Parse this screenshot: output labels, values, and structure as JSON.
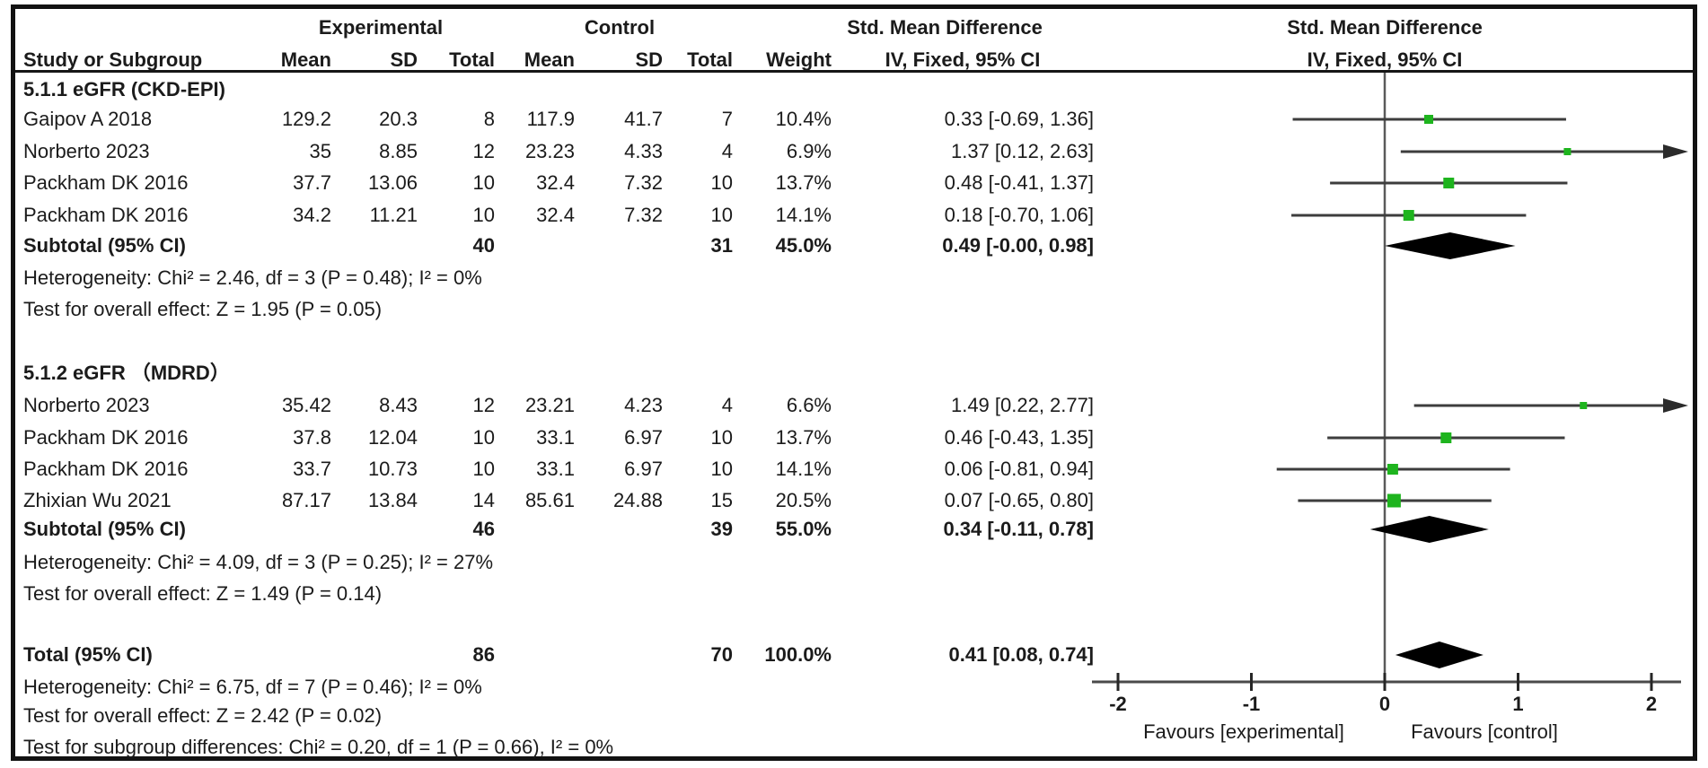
{
  "table": {
    "group_headers": {
      "experimental": "Experimental",
      "control": "Control",
      "smd_left": "Std. Mean Difference",
      "smd_right": "Std. Mean Difference"
    },
    "col_headers": {
      "study": "Study or Subgroup",
      "mean_e": "Mean",
      "sd_e": "SD",
      "total_e": "Total",
      "mean_c": "Mean",
      "sd_c": "SD",
      "total_c": "Total",
      "weight": "Weight",
      "iv_left": "IV, Fixed, 95% CI",
      "iv_right": "IV, Fixed, 95% CI"
    }
  },
  "chart_data": {
    "type": "forest",
    "effect_measure": "Std. Mean Difference",
    "method": "IV, Fixed",
    "ci_level": "95% CI",
    "marker_color": "#1eb41e",
    "diamond_color": "#000000",
    "x_axis": {
      "ticks": [
        -2,
        -1,
        0,
        1,
        2
      ],
      "range": [
        -2.2,
        2.2
      ],
      "favours_left": "Favours [experimental]",
      "favours_right": "Favours [control]"
    },
    "subgroups": [
      {
        "title": "5.1.1 eGFR (CKD-EPI)",
        "studies": [
          {
            "name": "Gaipov A 2018",
            "mean_e": "129.2",
            "sd_e": "20.3",
            "n_e": "8",
            "mean_c": "117.9",
            "sd_c": "41.7",
            "n_c": "7",
            "weight": "10.4%",
            "weight_value": 10.4,
            "ci_text": "0.33 [-0.69, 1.36]",
            "est": 0.33,
            "lo": -0.69,
            "hi": 1.36,
            "arrow": false
          },
          {
            "name": "Norberto 2023",
            "mean_e": "35",
            "sd_e": "8.85",
            "n_e": "12",
            "mean_c": "23.23",
            "sd_c": "4.33",
            "n_c": "4",
            "weight": "6.9%",
            "weight_value": 6.9,
            "ci_text": "1.37 [0.12, 2.63]",
            "est": 1.37,
            "lo": 0.12,
            "hi": 2.63,
            "arrow": true
          },
          {
            "name": "Packham DK 2016",
            "mean_e": "37.7",
            "sd_e": "13.06",
            "n_e": "10",
            "mean_c": "32.4",
            "sd_c": "7.32",
            "n_c": "10",
            "weight": "13.7%",
            "weight_value": 13.7,
            "ci_text": "0.48 [-0.41, 1.37]",
            "est": 0.48,
            "lo": -0.41,
            "hi": 1.37,
            "arrow": false
          },
          {
            "name": "Packham DK 2016",
            "mean_e": "34.2",
            "sd_e": "11.21",
            "n_e": "10",
            "mean_c": "32.4",
            "sd_c": "7.32",
            "n_c": "10",
            "weight": "14.1%",
            "weight_value": 14.1,
            "ci_text": "0.18 [-0.70, 1.06]",
            "est": 0.18,
            "lo": -0.7,
            "hi": 1.06,
            "arrow": false
          }
        ],
        "subtotal": {
          "label": "Subtotal (95% CI)",
          "n_e": "40",
          "n_c": "31",
          "weight": "45.0%",
          "ci_text": "0.49 [-0.00, 0.98]",
          "est": 0.49,
          "lo": 0.0,
          "hi": 0.98
        },
        "heterogeneity": "Heterogeneity: Chi² = 2.46, df = 3 (P = 0.48); I² = 0%",
        "overall_effect": "Test for overall effect: Z = 1.95 (P = 0.05)"
      },
      {
        "title": "5.1.2 eGFR （MDRD）",
        "studies": [
          {
            "name": "Norberto 2023",
            "mean_e": "35.42",
            "sd_e": "8.43",
            "n_e": "12",
            "mean_c": "23.21",
            "sd_c": "4.23",
            "n_c": "4",
            "weight": "6.6%",
            "weight_value": 6.6,
            "ci_text": "1.49 [0.22, 2.77]",
            "est": 1.49,
            "lo": 0.22,
            "hi": 2.77,
            "arrow": true
          },
          {
            "name": "Packham DK 2016",
            "mean_e": "37.8",
            "sd_e": "12.04",
            "n_e": "10",
            "mean_c": "33.1",
            "sd_c": "6.97",
            "n_c": "10",
            "weight": "13.7%",
            "weight_value": 13.7,
            "ci_text": "0.46 [-0.43, 1.35]",
            "est": 0.46,
            "lo": -0.43,
            "hi": 1.35,
            "arrow": false
          },
          {
            "name": "Packham DK 2016",
            "mean_e": "33.7",
            "sd_e": "10.73",
            "n_e": "10",
            "mean_c": "33.1",
            "sd_c": "6.97",
            "n_c": "10",
            "weight": "14.1%",
            "weight_value": 14.1,
            "ci_text": "0.06 [-0.81, 0.94]",
            "est": 0.06,
            "lo": -0.81,
            "hi": 0.94,
            "arrow": false
          },
          {
            "name": "Zhixian Wu 2021",
            "mean_e": "87.17",
            "sd_e": "13.84",
            "n_e": "14",
            "mean_c": "85.61",
            "sd_c": "24.88",
            "n_c": "15",
            "weight": "20.5%",
            "weight_value": 20.5,
            "ci_text": "0.07 [-0.65, 0.80]",
            "est": 0.07,
            "lo": -0.65,
            "hi": 0.8,
            "arrow": false
          }
        ],
        "subtotal": {
          "label": "Subtotal (95% CI)",
          "n_e": "46",
          "n_c": "39",
          "weight": "55.0%",
          "ci_text": "0.34 [-0.11, 0.78]",
          "est": 0.34,
          "lo": -0.11,
          "hi": 0.78
        },
        "heterogeneity": "Heterogeneity: Chi² = 4.09, df = 3 (P = 0.25); I² = 27%",
        "overall_effect": "Test for overall effect: Z = 1.49 (P = 0.14)"
      }
    ],
    "total": {
      "label": "Total (95% CI)",
      "n_e": "86",
      "n_c": "70",
      "weight": "100.0%",
      "ci_text": "0.41 [0.08, 0.74]",
      "est": 0.41,
      "lo": 0.08,
      "hi": 0.74,
      "heterogeneity": "Heterogeneity: Chi² = 6.75, df = 7 (P = 0.46); I² = 0%",
      "overall_effect": "Test for overall effect: Z = 2.42 (P = 0.02)",
      "subgroup_differences": "Test for subgroup differences: Chi² = 0.20, df = 1 (P = 0.66), I² = 0%"
    }
  }
}
